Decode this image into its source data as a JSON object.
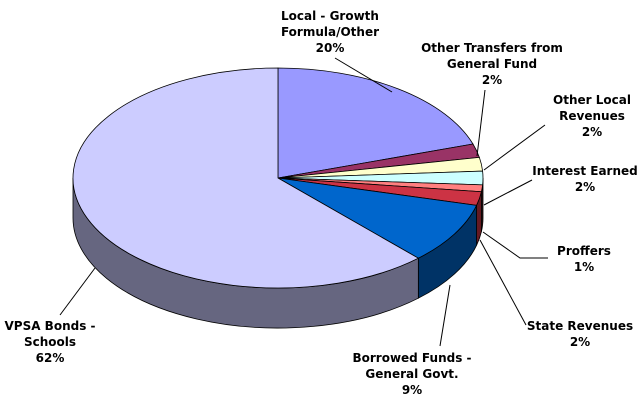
{
  "chart_data": {
    "type": "pie3d",
    "categories": [
      "Local - Growth Formula/Other",
      "Other Transfers from General Fund",
      "Other Local Revenues",
      "Interest Earned",
      "Proffers",
      "State Revenues",
      "Borrowed Funds - General Govt.",
      "VPSA Bonds - Schools"
    ],
    "values": [
      20,
      2,
      2,
      2,
      1,
      2,
      9,
      62
    ],
    "value_labels": [
      "20%",
      "2%",
      "2%",
      "2%",
      "1%",
      "2%",
      "9%",
      "62%"
    ],
    "colors": [
      "#9999FF",
      "#993366",
      "#FFFFCC",
      "#CCFFFF",
      "#FF8080",
      "#CC3344",
      "#0066CC",
      "#CCCCFF"
    ]
  }
}
